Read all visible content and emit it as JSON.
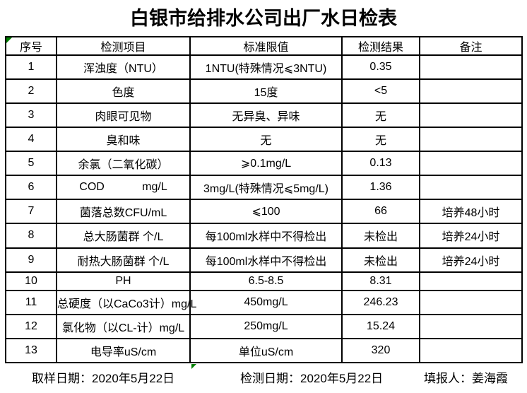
{
  "title": "白银市给排水公司出厂水日检表",
  "marker_color": "#008000",
  "table": {
    "headers": [
      "序号",
      "检测项目",
      "标准限值",
      "检测结果",
      "备注"
    ],
    "rows": [
      {
        "no": "1",
        "item": "浑浊度（NTU）",
        "standard": "1NTU(特殊情况⩽3NTU)",
        "result": "0.35",
        "remark": ""
      },
      {
        "no": "2",
        "item": "色度",
        "standard": "15度",
        "result": "<5",
        "remark": ""
      },
      {
        "no": "3",
        "item": "肉眼可见物",
        "standard": "无异臭、异味",
        "result": "无",
        "remark": ""
      },
      {
        "no": "4",
        "item": "臭和味",
        "standard": "无",
        "result": "无",
        "remark": ""
      },
      {
        "no": "5",
        "item": "余氯（二氧化碳）",
        "standard": "⩾0.1mg/L",
        "result": "0.13",
        "remark": ""
      },
      {
        "no": "6",
        "item": "COD            mg/L",
        "standard": "3mg/L(特殊情况⩽5mg/L)",
        "result": "1.36",
        "remark": ""
      },
      {
        "no": "7",
        "item": "菌落总数CFU/mL",
        "standard": "⩽100",
        "result": "66",
        "remark": "培养48小时"
      },
      {
        "no": "8",
        "item": "总大肠菌群 个/L",
        "standard": "每100ml水样中不得检出",
        "result": "未检出",
        "remark": "培养24小时"
      },
      {
        "no": "9",
        "item": "耐热大肠菌群 个/L",
        "standard": "每100ml水样中不得检出",
        "result": "未检出",
        "remark": "培养24小时"
      },
      {
        "no": "10",
        "item": "PH",
        "standard": "6.5-8.5",
        "result": "8.31",
        "remark": ""
      },
      {
        "no": "11",
        "item": "总硬度（以CaCo3计）mg/L",
        "standard": "450mg/L",
        "result": "246.23",
        "remark": ""
      },
      {
        "no": "12",
        "item": "氯化物（以CL-计）mg/L",
        "standard": "250mg/L",
        "result": "15.24",
        "remark": ""
      },
      {
        "no": "13",
        "item": "电导率uS/cm",
        "standard": "单位uS/cm",
        "result": "320",
        "remark": ""
      }
    ]
  },
  "footer": {
    "items": [
      {
        "label": "取样日期：",
        "value": "2020年5月22日"
      },
      {
        "label": "检测日期：",
        "value": "2020年5月22日"
      },
      {
        "label": "填报人：",
        "value": "姜海霞"
      }
    ]
  }
}
